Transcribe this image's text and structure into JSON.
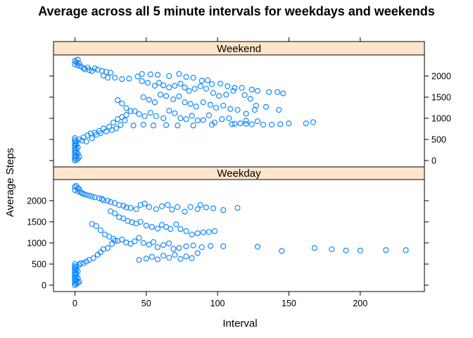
{
  "chart_data": {
    "type": "scatter",
    "title": "Average across all 5 minute intervals for weekdays and weekends",
    "xlabel": "Interval",
    "ylabel": "Average Steps",
    "xlim": [
      -15,
      245
    ],
    "ylim": [
      -150,
      2500
    ],
    "x_ticks": [
      0,
      50,
      100,
      150,
      200
    ],
    "y_ticks": [
      0,
      500,
      1000,
      1500,
      2000
    ],
    "grid": false,
    "point_color": "#0080ff",
    "strip_color": "#ffe5cc",
    "panels": [
      {
        "name": "Weekend",
        "points": [
          [
            0,
            0
          ],
          [
            0,
            60
          ],
          [
            0,
            120
          ],
          [
            0,
            180
          ],
          [
            0,
            240
          ],
          [
            0,
            300
          ],
          [
            0,
            360
          ],
          [
            0,
            420
          ],
          [
            0,
            480
          ],
          [
            0,
            530
          ],
          [
            1,
            20
          ],
          [
            1,
            100
          ],
          [
            1,
            200
          ],
          [
            1,
            280
          ],
          [
            1,
            380
          ],
          [
            1,
            450
          ],
          [
            2,
            40
          ],
          [
            2,
            160
          ],
          [
            2,
            310
          ],
          [
            3,
            90
          ],
          [
            3,
            500
          ],
          [
            2,
            2390
          ],
          [
            0,
            2360
          ],
          [
            1,
            2330
          ],
          [
            3,
            2300
          ],
          [
            0,
            2280
          ],
          [
            2,
            2250
          ],
          [
            4,
            2230
          ],
          [
            6,
            2190
          ],
          [
            7,
            2160
          ],
          [
            9,
            2200
          ],
          [
            10,
            2140
          ],
          [
            12,
            2120
          ],
          [
            14,
            2180
          ],
          [
            16,
            2150
          ],
          [
            19,
            2120
          ],
          [
            22,
            2100
          ],
          [
            25,
            2080
          ],
          [
            20,
            2010
          ],
          [
            23,
            1960
          ],
          [
            28,
            1960
          ],
          [
            33,
            1930
          ],
          [
            38,
            1940
          ],
          [
            44,
            1990
          ],
          [
            47,
            2050
          ],
          [
            53,
            2040
          ],
          [
            58,
            2030
          ],
          [
            66,
            2000
          ],
          [
            73,
            2050
          ],
          [
            78,
            1980
          ],
          [
            83,
            1960
          ],
          [
            89,
            1890
          ],
          [
            93,
            1900
          ],
          [
            96,
            1810
          ],
          [
            102,
            1820
          ],
          [
            107,
            1760
          ],
          [
            112,
            1720
          ],
          [
            117,
            1720
          ],
          [
            124,
            1680
          ],
          [
            128,
            1650
          ],
          [
            136,
            1620
          ],
          [
            142,
            1620
          ],
          [
            146,
            1590
          ],
          [
            47,
            1880
          ],
          [
            51,
            1840
          ],
          [
            56,
            1770
          ],
          [
            59,
            1840
          ],
          [
            62,
            1780
          ],
          [
            66,
            1730
          ],
          [
            70,
            1770
          ],
          [
            74,
            1820
          ],
          [
            77,
            1730
          ],
          [
            80,
            1650
          ],
          [
            84,
            1700
          ],
          [
            88,
            1760
          ],
          [
            92,
            1700
          ],
          [
            97,
            1600
          ],
          [
            101,
            1530
          ],
          [
            106,
            1560
          ],
          [
            111,
            1650
          ],
          [
            119,
            1550
          ],
          [
            123,
            1460
          ],
          [
            127,
            1300
          ],
          [
            48,
            1500
          ],
          [
            52,
            1440
          ],
          [
            56,
            1380
          ],
          [
            60,
            1560
          ],
          [
            64,
            1530
          ],
          [
            69,
            1450
          ],
          [
            73,
            1520
          ],
          [
            77,
            1380
          ],
          [
            81,
            1340
          ],
          [
            85,
            1280
          ],
          [
            90,
            1380
          ],
          [
            95,
            1320
          ],
          [
            99,
            1250
          ],
          [
            104,
            1300
          ],
          [
            109,
            1220
          ],
          [
            114,
            1200
          ],
          [
            120,
            1110
          ],
          [
            126,
            1200
          ],
          [
            134,
            1270
          ],
          [
            143,
            1200
          ],
          [
            30,
            1430
          ],
          [
            33,
            1350
          ],
          [
            36,
            1240
          ],
          [
            39,
            1170
          ],
          [
            42,
            1170
          ],
          [
            45,
            1100
          ],
          [
            49,
            1050
          ],
          [
            53,
            1130
          ],
          [
            57,
            1050
          ],
          [
            62,
            1000
          ],
          [
            66,
            1180
          ],
          [
            70,
            1120
          ],
          [
            74,
            1000
          ],
          [
            78,
            980
          ],
          [
            82,
            1060
          ],
          [
            86,
            950
          ],
          [
            90,
            960
          ],
          [
            94,
            1070
          ],
          [
            98,
            900
          ],
          [
            103,
            980
          ],
          [
            108,
            1000
          ],
          [
            112,
            870
          ],
          [
            116,
            880
          ],
          [
            120,
            940
          ],
          [
            124,
            860
          ],
          [
            128,
            930
          ],
          [
            132,
            850
          ],
          [
            138,
            850
          ],
          [
            144,
            860
          ],
          [
            150,
            880
          ],
          [
            162,
            880
          ],
          [
            167,
            910
          ],
          [
            41,
            830
          ],
          [
            48,
            850
          ],
          [
            55,
            830
          ],
          [
            64,
            840
          ],
          [
            72,
            830
          ],
          [
            83,
            830
          ],
          [
            96,
            850
          ],
          [
            110,
            860
          ],
          [
            120,
            870
          ],
          [
            6,
            550
          ],
          [
            9,
            600
          ],
          [
            11,
            640
          ],
          [
            14,
            660
          ],
          [
            17,
            700
          ],
          [
            20,
            760
          ],
          [
            24,
            800
          ],
          [
            27,
            900
          ],
          [
            30,
            980
          ],
          [
            33,
            1030
          ],
          [
            36,
            1080
          ],
          [
            5,
            470
          ],
          [
            8,
            450
          ],
          [
            12,
            530
          ],
          [
            15,
            610
          ],
          [
            18,
            650
          ],
          [
            22,
            690
          ],
          [
            26,
            720
          ],
          [
            29,
            760
          ],
          [
            32,
            840
          ],
          [
            35,
            950
          ]
        ]
      },
      {
        "name": "Weekday",
        "points": [
          [
            0,
            0
          ],
          [
            0,
            50
          ],
          [
            0,
            100
          ],
          [
            0,
            150
          ],
          [
            0,
            200
          ],
          [
            0,
            250
          ],
          [
            0,
            300
          ],
          [
            0,
            350
          ],
          [
            0,
            400
          ],
          [
            0,
            450
          ],
          [
            0,
            500
          ],
          [
            1,
            30
          ],
          [
            1,
            110
          ],
          [
            1,
            190
          ],
          [
            1,
            270
          ],
          [
            1,
            360
          ],
          [
            1,
            440
          ],
          [
            2,
            60
          ],
          [
            2,
            170
          ],
          [
            2,
            330
          ],
          [
            3,
            80
          ],
          [
            3,
            480
          ],
          [
            4,
            520
          ],
          [
            1,
            2350
          ],
          [
            0,
            2330
          ],
          [
            2,
            2300
          ],
          [
            3,
            2270
          ],
          [
            0,
            2250
          ],
          [
            2,
            2220
          ],
          [
            4,
            2200
          ],
          [
            5,
            2180
          ],
          [
            6,
            2160
          ],
          [
            8,
            2140
          ],
          [
            10,
            2120
          ],
          [
            12,
            2100
          ],
          [
            14,
            2080
          ],
          [
            17,
            2060
          ],
          [
            19,
            2040
          ],
          [
            20,
            2010
          ],
          [
            23,
            2000
          ],
          [
            25,
            1970
          ],
          [
            28,
            1940
          ],
          [
            31,
            1900
          ],
          [
            34,
            1880
          ],
          [
            36,
            1840
          ],
          [
            39,
            1830
          ],
          [
            43,
            1800
          ],
          [
            46,
            1900
          ],
          [
            49,
            1930
          ],
          [
            52,
            1850
          ],
          [
            57,
            1800
          ],
          [
            61,
            1870
          ],
          [
            65,
            1900
          ],
          [
            68,
            1790
          ],
          [
            72,
            1850
          ],
          [
            77,
            1740
          ],
          [
            81,
            1850
          ],
          [
            86,
            1800
          ],
          [
            88,
            1900
          ],
          [
            92,
            1840
          ],
          [
            97,
            1820
          ],
          [
            104,
            1780
          ],
          [
            114,
            1830
          ],
          [
            25,
            1750
          ],
          [
            28,
            1700
          ],
          [
            31,
            1610
          ],
          [
            34,
            1580
          ],
          [
            37,
            1520
          ],
          [
            40,
            1490
          ],
          [
            43,
            1460
          ],
          [
            46,
            1500
          ],
          [
            50,
            1410
          ],
          [
            54,
            1380
          ],
          [
            58,
            1340
          ],
          [
            61,
            1430
          ],
          [
            64,
            1380
          ],
          [
            67,
            1330
          ],
          [
            71,
            1440
          ],
          [
            74,
            1330
          ],
          [
            78,
            1280
          ],
          [
            82,
            1200
          ],
          [
            86,
            1230
          ],
          [
            90,
            1250
          ],
          [
            94,
            1260
          ],
          [
            98,
            1280
          ],
          [
            12,
            1450
          ],
          [
            15,
            1400
          ],
          [
            18,
            1300
          ],
          [
            21,
            1200
          ],
          [
            24,
            1150
          ],
          [
            27,
            1100
          ],
          [
            30,
            1050
          ],
          [
            33,
            1080
          ],
          [
            36,
            1010
          ],
          [
            39,
            980
          ],
          [
            42,
            1040
          ],
          [
            45,
            1120
          ],
          [
            48,
            1000
          ],
          [
            52,
            960
          ],
          [
            55,
            1020
          ],
          [
            58,
            900
          ],
          [
            62,
            950
          ],
          [
            66,
            990
          ],
          [
            69,
            860
          ],
          [
            73,
            880
          ],
          [
            78,
            920
          ],
          [
            83,
            940
          ],
          [
            89,
            900
          ],
          [
            95,
            930
          ],
          [
            104,
            920
          ],
          [
            128,
            910
          ],
          [
            145,
            810
          ],
          [
            168,
            880
          ],
          [
            180,
            850
          ],
          [
            190,
            820
          ],
          [
            200,
            820
          ],
          [
            218,
            830
          ],
          [
            232,
            830
          ],
          [
            45,
            600
          ],
          [
            50,
            630
          ],
          [
            54,
            670
          ],
          [
            58,
            610
          ],
          [
            62,
            700
          ],
          [
            66,
            650
          ],
          [
            70,
            720
          ],
          [
            74,
            620
          ],
          [
            78,
            680
          ],
          [
            82,
            640
          ],
          [
            86,
            760
          ],
          [
            6,
            520
          ],
          [
            8,
            560
          ],
          [
            10,
            600
          ],
          [
            13,
            640
          ],
          [
            16,
            720
          ],
          [
            18,
            780
          ],
          [
            20,
            850
          ],
          [
            23,
            880
          ],
          [
            26,
            980
          ],
          [
            28,
            1050
          ]
        ]
      }
    ]
  }
}
